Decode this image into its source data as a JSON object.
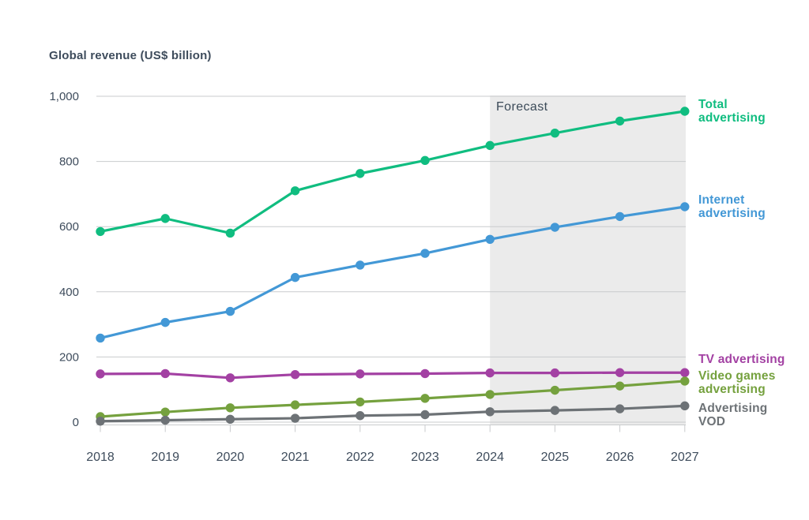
{
  "chart_data": {
    "type": "line",
    "title": "Global revenue (US$ billion)",
    "categories": [
      "2018",
      "2019",
      "2020",
      "2021",
      "2022",
      "2023",
      "2024",
      "2025",
      "2026",
      "2027"
    ],
    "ylim": [
      0,
      1000
    ],
    "yticks": [
      0,
      200,
      400,
      600,
      800,
      1000
    ],
    "ytick_labels": [
      "0",
      "200",
      "400",
      "600",
      "800",
      "1,000"
    ],
    "grid": true,
    "legend_position": "right",
    "forecast": {
      "label": "Forecast",
      "start": "2024",
      "end": "2027"
    },
    "series": [
      {
        "name": "Total advertising",
        "legend_lines": [
          "Total",
          "advertising"
        ],
        "color": "#10bd80",
        "values": [
          585,
          625,
          580,
          710,
          763,
          803,
          849,
          887,
          924,
          954
        ]
      },
      {
        "name": "Internet advertising",
        "legend_lines": [
          "Internet",
          "advertising"
        ],
        "color": "#4398d6",
        "values": [
          258,
          306,
          340,
          444,
          482,
          518,
          561,
          598,
          631,
          661
        ]
      },
      {
        "name": "TV advertising",
        "legend_lines": [
          "TV advertising"
        ],
        "color": "#a341a3",
        "values": [
          148,
          149,
          136,
          146,
          148,
          149,
          151,
          151,
          152,
          152
        ]
      },
      {
        "name": "Video games advertising",
        "legend_lines": [
          "Video games",
          "advertising"
        ],
        "color": "#75a13e",
        "values": [
          17,
          31,
          44,
          53,
          62,
          73,
          85,
          98,
          111,
          126
        ]
      },
      {
        "name": "Advertising VOD",
        "legend_lines": [
          "Advertising",
          "VOD"
        ],
        "color": "#6d7276",
        "values": [
          3,
          6,
          9,
          12,
          20,
          23,
          32,
          36,
          41,
          50
        ]
      }
    ],
    "palette": {
      "text": "#3e4c5c",
      "gridline": "#c9cbcd",
      "forecast_band": "#ebebeb",
      "background": "#ffffff"
    }
  }
}
